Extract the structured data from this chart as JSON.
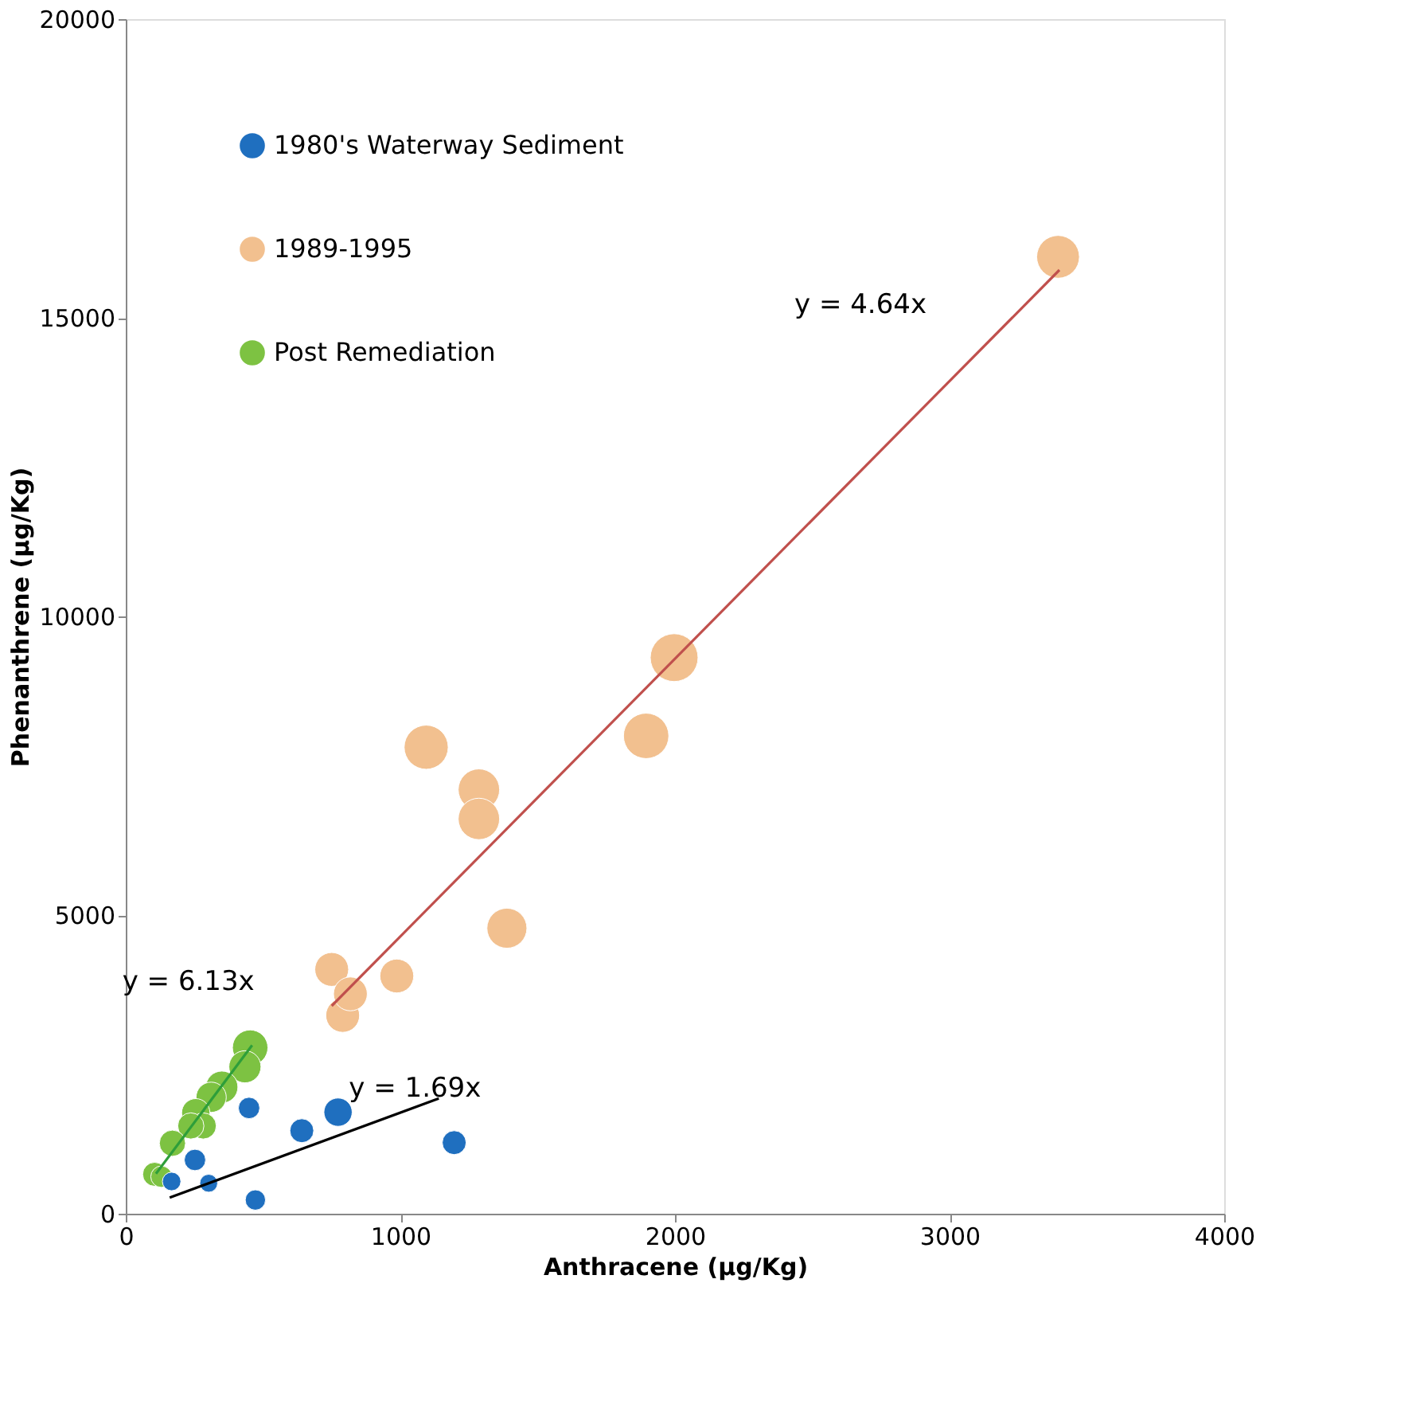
{
  "chart_data": {
    "type": "bubble",
    "xlabel": "Anthracene (µg/Kg)",
    "ylabel": "Phenanthrene (µg/Kg)",
    "xlim": [
      0,
      4000
    ],
    "xticks": [
      0,
      1000,
      2000,
      3000,
      4000
    ],
    "ylim": [
      0,
      20000
    ],
    "yticks": [
      0,
      5000,
      10000,
      15000,
      20000
    ],
    "grid": false,
    "legend": "top left",
    "marker": "circle",
    "series": [
      {
        "name": "1980's Waterway Sediment",
        "color": "#1f6fbf",
        "x": [
          449,
          641,
          773,
          1196,
          472,
          252,
          302,
          167
        ],
        "values": [
          1770,
          1390,
          1700,
          1190,
          230,
          900,
          510,
          540
        ],
        "sizes": [
          0.2,
          0.25,
          0.35,
          0.25,
          0.18,
          0.2,
          0.14,
          0.15
        ]
      },
      {
        "name": "1989-1995",
        "color": "#f2c08f",
        "x": [
          750,
          790,
          818,
          987,
          1094,
          1286,
          1286,
          1388,
          1895,
          1997,
          3395
        ],
        "values": [
          4090,
          3320,
          3680,
          3980,
          7810,
          7100,
          6610,
          4780,
          8000,
          9310,
          16020
        ],
        "sizes": [
          0.5,
          0.5,
          0.5,
          0.5,
          0.85,
          0.75,
          0.75,
          0.7,
          0.9,
          1,
          0.8
        ]
      },
      {
        "name": "Post Remediation",
        "color": "#7dc242",
        "x": [
          453,
          434,
          350,
          311,
          255,
          282,
          237,
          170,
          105,
          130
        ],
        "values": [
          2780,
          2460,
          2120,
          1950,
          1690,
          1470,
          1470,
          1180,
          660,
          620
        ],
        "sizes": [
          0.55,
          0.45,
          0.45,
          0.4,
          0.35,
          0.3,
          0.3,
          0.3,
          0.25,
          0.2
        ]
      },
      {
        "type": "line",
        "marker": "none",
        "color": "#c0504d",
        "x": [
          750,
          3400
        ],
        "values": [
          3480,
          15800
        ]
      },
      {
        "type": "line",
        "marker": "none",
        "color": "#2e9e3a",
        "x": [
          110,
          460
        ],
        "values": [
          670,
          2820
        ]
      },
      {
        "type": "line",
        "marker": "none",
        "color": "#000000",
        "x": [
          160,
          1140
        ],
        "values": [
          270,
          1930
        ]
      }
    ],
    "annotations": [
      "y = 4.64x",
      "y = 6.13x",
      "y = 1.69x"
    ]
  }
}
